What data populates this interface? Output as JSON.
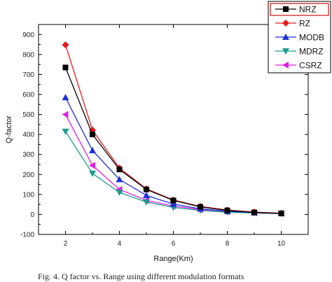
{
  "chart_data": {
    "type": "line",
    "xlabel": "Range(Km)",
    "ylabel": "Q-factor",
    "xlim": [
      1,
      11
    ],
    "ylim": [
      -100,
      950
    ],
    "xticks": [
      2,
      4,
      6,
      8,
      10
    ],
    "yticks": [
      -100,
      0,
      100,
      200,
      300,
      400,
      500,
      600,
      700,
      800,
      900
    ],
    "x": [
      2,
      3,
      4,
      5,
      6,
      7,
      8,
      9,
      10
    ],
    "legend_position": "top-right",
    "grid": false,
    "series": [
      {
        "name": "NRZ",
        "color": "#000000",
        "marker": "square",
        "values": [
          735,
          400,
          225,
          125,
          70,
          38,
          20,
          10,
          5
        ]
      },
      {
        "name": "RZ",
        "color": "#e8191b",
        "marker": "diamond",
        "values": [
          848,
          422,
          232,
          128,
          72,
          40,
          22,
          12,
          6
        ]
      },
      {
        "name": "MODB",
        "color": "#1f2fd6",
        "marker": "triangle-up",
        "values": [
          585,
          320,
          175,
          95,
          52,
          28,
          16,
          9,
          5
        ]
      },
      {
        "name": "MDRZ",
        "color": "#1f9a8f",
        "marker": "triangle-down",
        "values": [
          415,
          205,
          110,
          62,
          35,
          20,
          11,
          7,
          4
        ]
      },
      {
        "name": "CSRZ",
        "color": "#e020e0",
        "marker": "triangle-left",
        "values": [
          500,
          245,
          125,
          70,
          42,
          25,
          14,
          8,
          5
        ]
      }
    ]
  },
  "caption": "Fig. 4. Q factor vs. Range using different modulation formats"
}
